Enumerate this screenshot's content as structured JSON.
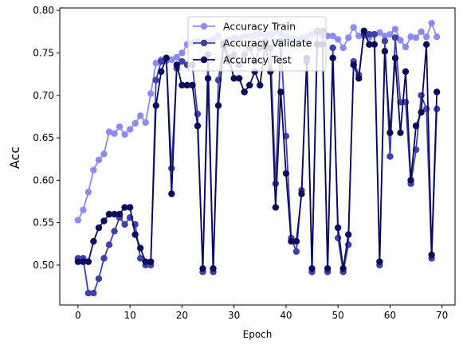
{
  "chart_data": {
    "type": "line",
    "title": "",
    "xlabel": "Epoch",
    "ylabel": "Acc",
    "ylabel_color": "#1f1fcc",
    "xlim": [
      -3.5,
      72.5
    ],
    "ylim": [
      0.453,
      0.803
    ],
    "xticks": [
      0,
      10,
      20,
      30,
      40,
      50,
      60,
      70
    ],
    "yticks": [
      0.5,
      0.55,
      0.6,
      0.65,
      0.7,
      0.75,
      0.8
    ],
    "ytick_labels": [
      "0.50",
      "0.55",
      "0.60",
      "0.65",
      "0.70",
      "0.75",
      "0.80"
    ],
    "grid": false,
    "legend": "upper center",
    "x": [
      0,
      1,
      2,
      3,
      4,
      5,
      6,
      7,
      8,
      9,
      10,
      11,
      12,
      13,
      14,
      15,
      16,
      17,
      18,
      19,
      20,
      21,
      22,
      23,
      24,
      25,
      26,
      27,
      28,
      29,
      30,
      31,
      32,
      33,
      34,
      35,
      36,
      37,
      38,
      39,
      40,
      41,
      42,
      43,
      44,
      45,
      46,
      47,
      48,
      49,
      50,
      51,
      52,
      53,
      54,
      55,
      56,
      57,
      58,
      59,
      60,
      61,
      62,
      63,
      64,
      65,
      66,
      67,
      68,
      69
    ],
    "series": [
      {
        "name": "Accuracy Train",
        "color": "#8c8cf0",
        "values": [
          0.553,
          0.565,
          0.586,
          0.612,
          0.624,
          0.631,
          0.657,
          0.655,
          0.663,
          0.654,
          0.66,
          0.667,
          0.676,
          0.668,
          0.702,
          0.738,
          0.742,
          0.741,
          0.742,
          0.745,
          0.75,
          0.76,
          0.762,
          0.764,
          0.762,
          0.763,
          0.766,
          0.77,
          0.762,
          0.765,
          0.768,
          0.767,
          0.77,
          0.77,
          0.771,
          0.772,
          0.772,
          0.771,
          0.775,
          0.773,
          0.77,
          0.767,
          0.765,
          0.768,
          0.769,
          0.772,
          0.774,
          0.771,
          0.77,
          0.77,
          0.766,
          0.756,
          0.768,
          0.78,
          0.77,
          0.77,
          0.768,
          0.772,
          0.774,
          0.77,
          0.772,
          0.778,
          0.765,
          0.757,
          0.769,
          0.768,
          0.775,
          0.769,
          0.785,
          0.769
        ]
      },
      {
        "name": "Accuracy Validate",
        "color": "#4040a8",
        "values": [
          0.508,
          0.508,
          0.467,
          0.467,
          0.484,
          0.508,
          0.524,
          0.54,
          0.556,
          0.548,
          0.556,
          0.548,
          0.508,
          0.5,
          0.5,
          0.718,
          0.74,
          0.744,
          0.614,
          0.732,
          0.74,
          0.736,
          0.736,
          0.678,
          0.492,
          0.748,
          0.492,
          0.718,
          0.758,
          0.74,
          0.748,
          0.736,
          0.748,
          0.756,
          0.74,
          0.756,
          0.764,
          0.756,
          0.596,
          0.764,
          0.652,
          0.532,
          0.516,
          0.588,
          0.74,
          0.492,
          0.776,
          0.776,
          0.492,
          0.756,
          0.532,
          0.492,
          0.524,
          0.74,
          0.724,
          0.772,
          0.772,
          0.772,
          0.5,
          0.764,
          0.628,
          0.768,
          0.692,
          0.692,
          0.596,
          0.636,
          0.7,
          0.684,
          0.508,
          0.684
        ]
      },
      {
        "name": "Accuracy Test",
        "color": "#0b0b5e",
        "values": [
          0.504,
          0.504,
          0.504,
          0.528,
          0.544,
          0.552,
          0.56,
          0.56,
          0.56,
          0.568,
          0.568,
          0.536,
          0.52,
          0.504,
          0.504,
          0.688,
          0.728,
          0.744,
          0.584,
          0.736,
          0.712,
          0.712,
          0.712,
          0.664,
          0.496,
          0.72,
          0.496,
          0.688,
          0.76,
          0.744,
          0.72,
          0.72,
          0.704,
          0.712,
          0.728,
          0.712,
          0.76,
          0.728,
          0.568,
          0.704,
          0.608,
          0.528,
          0.528,
          0.584,
          0.744,
          0.496,
          0.76,
          0.76,
          0.496,
          0.744,
          0.544,
          0.496,
          0.536,
          0.736,
          0.72,
          0.776,
          0.76,
          0.76,
          0.504,
          0.752,
          0.656,
          0.744,
          0.656,
          0.728,
          0.6,
          0.664,
          0.68,
          0.76,
          0.512,
          0.704
        ]
      }
    ]
  }
}
